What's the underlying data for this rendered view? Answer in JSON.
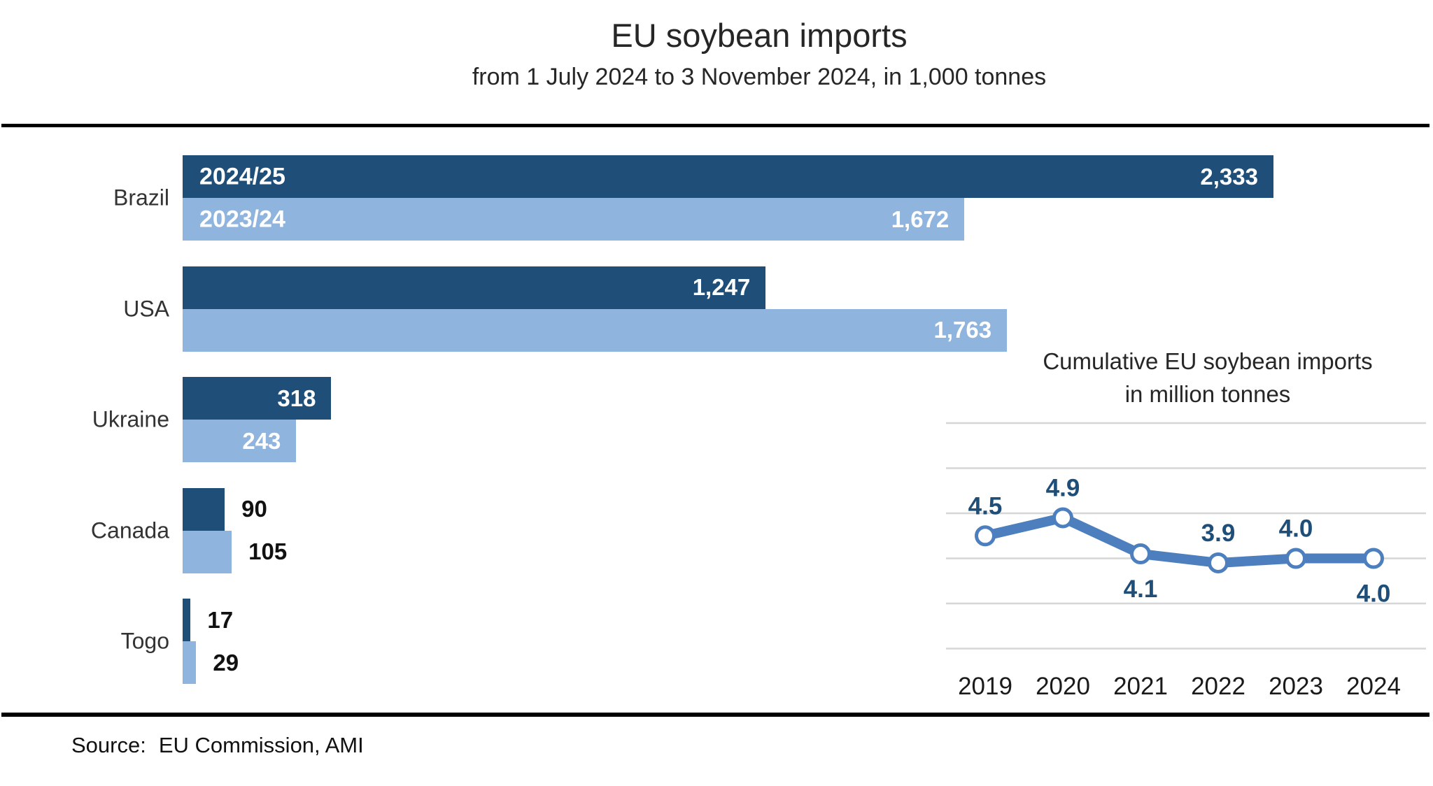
{
  "header": {
    "title": "EU soybean imports",
    "subtitle": "from 1 July 2024 to 3 November 2024, in 1,000 tonnes"
  },
  "source": {
    "label": "Source:",
    "value": "EU Commission, AMI"
  },
  "colors": {
    "dark_blue": "#1F4E79",
    "light_blue": "#8FB4DE",
    "line_blue": "#4D7FBE",
    "label_navy": "#1F4E79",
    "gridline": "#D6D6D6",
    "year_text": "#1A1A1A",
    "rule_black": "#000000"
  },
  "chart_data": [
    {
      "type": "bar",
      "orientation": "horizontal",
      "unit": "1,000 tonnes",
      "series": [
        {
          "name": "2024/25",
          "color": "#1F4E79"
        },
        {
          "name": "2023/24",
          "color": "#8FB4DE"
        }
      ],
      "categories": [
        "Brazil",
        "USA",
        "Ukraine",
        "Canada",
        "Togo"
      ],
      "rows": [
        {
          "category": "Brazil",
          "values": [
            2333,
            1672
          ],
          "labels": [
            "2,333",
            "1,672"
          ],
          "value_label_position": "inside",
          "show_series_labels": true
        },
        {
          "category": "USA",
          "values": [
            1247,
            1763
          ],
          "labels": [
            "1,247",
            "1,763"
          ],
          "value_label_position": "inside",
          "show_series_labels": false
        },
        {
          "category": "Ukraine",
          "values": [
            318,
            243
          ],
          "labels": [
            "318",
            "243"
          ],
          "value_label_position": "inside",
          "show_series_labels": false
        },
        {
          "category": "Canada",
          "values": [
            90,
            105
          ],
          "labels": [
            "90",
            "105"
          ],
          "value_label_position": "outside",
          "show_series_labels": false
        },
        {
          "category": "Togo",
          "values": [
            17,
            29
          ],
          "labels": [
            "17",
            "29"
          ],
          "value_label_position": "outside",
          "show_series_labels": false
        }
      ],
      "xlim": [
        0,
        2400
      ],
      "value_axis_visible": false,
      "grid": false
    },
    {
      "type": "line",
      "title": "Cumulative EU soybean imports",
      "subtitle": "in million tonnes",
      "x": [
        "2019",
        "2020",
        "2021",
        "2022",
        "2023",
        "2024"
      ],
      "values": [
        4.5,
        4.9,
        4.1,
        3.9,
        4.0,
        4.0
      ],
      "labels": [
        "4.5",
        "4.9",
        "4.1",
        "3.9",
        "4.0",
        "4.0"
      ],
      "label_positions": [
        "above",
        "above",
        "below",
        "above",
        "above",
        "below"
      ],
      "ylim": [
        2,
        7
      ],
      "grid": true,
      "legend": false
    }
  ]
}
